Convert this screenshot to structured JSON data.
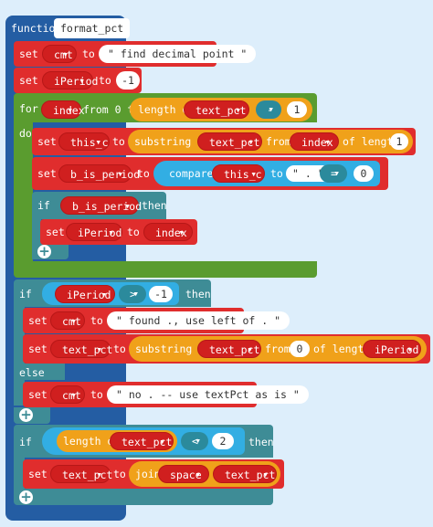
{
  "function": {
    "keyword": "function",
    "name": "format_pct"
  },
  "kw": {
    "set": "set",
    "to": "to",
    "for": "for",
    "from": "from",
    "from_0_to": "from 0 to",
    "do": "do",
    "if": "if",
    "then": "then",
    "else": "else",
    "length_of": "length of",
    "substring_of": "substring of",
    "of_length": "of length",
    "compare": "compare",
    "join": "join"
  },
  "vars": {
    "cmt": "cmt",
    "iPeriod": "iPeriod",
    "index": "index",
    "text_pct": "text_pct",
    "this_c": "this_c",
    "b_is_period": "b_is_period",
    "space": "space"
  },
  "strings": {
    "find": "\" find decimal point \"",
    "found": "\" found ., use left of . \"",
    "period": "\" . \"",
    "none": "\" no . -- use textPct as is \""
  },
  "numbers": {
    "neg1": "-1",
    "one": "1",
    "zero": "0",
    "two": "2"
  },
  "ops": {
    "minus": "-",
    "eq": "=",
    "gt": ">",
    "lt": "<"
  }
}
